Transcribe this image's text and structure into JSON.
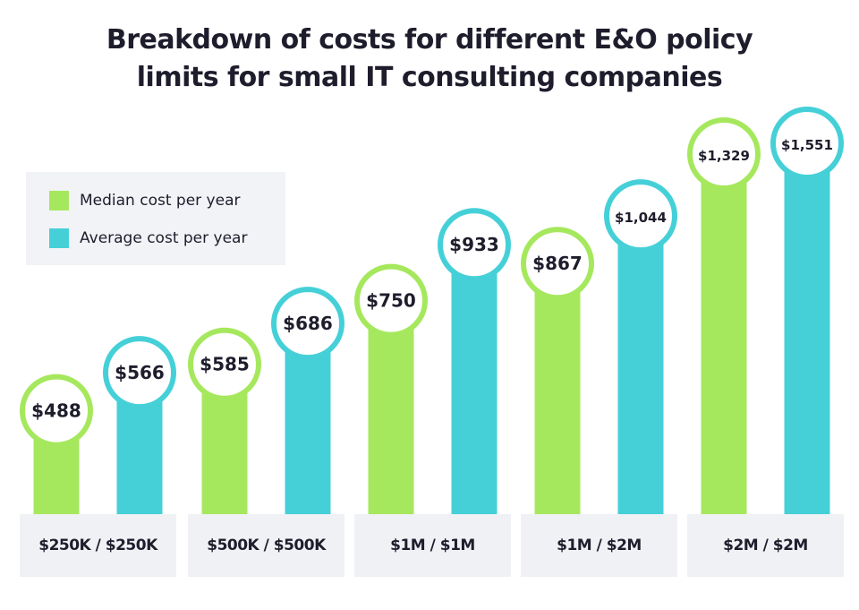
{
  "chart_data": {
    "type": "bar",
    "title": "Breakdown of costs for different E&O policy limits for small IT consulting companies",
    "title_lines": [
      "Breakdown of costs for different E&O policy",
      "limits for small IT consulting companies"
    ],
    "xlabel": "",
    "ylabel": "",
    "categories": [
      "$250K / $250K",
      "$500K / $500K",
      "$1M / $1M",
      "$1M / $2M",
      "$2M / $2M"
    ],
    "series": [
      {
        "name": "Median cost per year",
        "color": "#a6e85d",
        "values": [
          488,
          585,
          750,
          867,
          1329
        ],
        "labels": [
          "$488",
          "$585",
          "$750",
          "$867",
          "$1,329"
        ]
      },
      {
        "name": "Average cost per year",
        "color": "#45d0d8",
        "values": [
          566,
          686,
          933,
          1044,
          1551
        ],
        "labels": [
          "$566",
          "$686",
          "$933",
          "$1,044",
          "$1,551"
        ]
      }
    ],
    "grid": false,
    "legend_position": "top-left",
    "value_labels": "circle badges at bar tops"
  }
}
